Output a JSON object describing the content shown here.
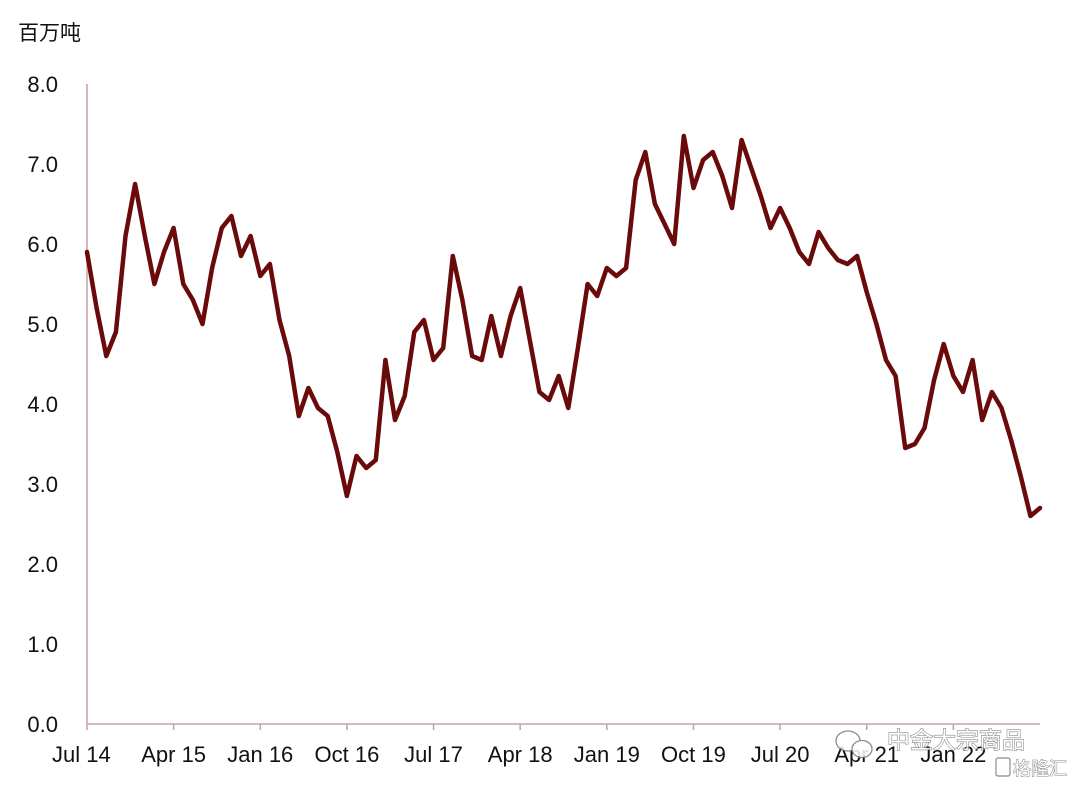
{
  "chart_data": {
    "type": "line",
    "unit_label": "百万吨",
    "ylim": [
      0,
      8
    ],
    "y_ticks": [
      "0.0",
      "1.0",
      "2.0",
      "3.0",
      "4.0",
      "5.0",
      "6.0",
      "7.0",
      "8.0"
    ],
    "x_tick_labels": [
      "Jul 14",
      "Apr 15",
      "Jan 16",
      "Oct 16",
      "Jul 17",
      "Apr 18",
      "Jan 19",
      "Oct 19",
      "Jul 20",
      "Apr 21",
      "Jan 22"
    ],
    "grid": false,
    "legend": "none",
    "line_color": "#6b0a0a",
    "axis_color": "#c9a0a0",
    "series": [
      {
        "points": [
          [
            "2014-07",
            5.9
          ],
          [
            "2014-08",
            5.2
          ],
          [
            "2014-09",
            4.6
          ],
          [
            "2014-10",
            4.9
          ],
          [
            "2014-11",
            6.1
          ],
          [
            "2014-12",
            6.75
          ],
          [
            "2015-01",
            6.1
          ],
          [
            "2015-02",
            5.5
          ],
          [
            "2015-03",
            5.9
          ],
          [
            "2015-04",
            6.2
          ],
          [
            "2015-05",
            5.5
          ],
          [
            "2015-06",
            5.3
          ],
          [
            "2015-07",
            5.0
          ],
          [
            "2015-08",
            5.7
          ],
          [
            "2015-09",
            6.2
          ],
          [
            "2015-10",
            6.35
          ],
          [
            "2015-11",
            5.85
          ],
          [
            "2015-12",
            6.1
          ],
          [
            "2016-01",
            5.6
          ],
          [
            "2016-02",
            5.75
          ],
          [
            "2016-03",
            5.05
          ],
          [
            "2016-04",
            4.6
          ],
          [
            "2016-05",
            3.85
          ],
          [
            "2016-06",
            4.2
          ],
          [
            "2016-07",
            3.95
          ],
          [
            "2016-08",
            3.85
          ],
          [
            "2016-09",
            3.4
          ],
          [
            "2016-10",
            2.85
          ],
          [
            "2016-11",
            3.35
          ],
          [
            "2016-12",
            3.2
          ],
          [
            "2017-01",
            3.3
          ],
          [
            "2017-02",
            4.55
          ],
          [
            "2017-03",
            3.8
          ],
          [
            "2017-04",
            4.1
          ],
          [
            "2017-05",
            4.9
          ],
          [
            "2017-06",
            5.05
          ],
          [
            "2017-07",
            4.55
          ],
          [
            "2017-08",
            4.7
          ],
          [
            "2017-09",
            5.85
          ],
          [
            "2017-10",
            5.3
          ],
          [
            "2017-11",
            4.6
          ],
          [
            "2017-12",
            4.55
          ],
          [
            "2018-01",
            5.1
          ],
          [
            "2018-02",
            4.6
          ],
          [
            "2018-03",
            5.1
          ],
          [
            "2018-04",
            5.45
          ],
          [
            "2018-05",
            4.8
          ],
          [
            "2018-06",
            4.15
          ],
          [
            "2018-07",
            4.05
          ],
          [
            "2018-08",
            4.35
          ],
          [
            "2018-09",
            3.95
          ],
          [
            "2018-10",
            4.7
          ],
          [
            "2018-11",
            5.5
          ],
          [
            "2018-12",
            5.35
          ],
          [
            "2019-01",
            5.7
          ],
          [
            "2019-02",
            5.6
          ],
          [
            "2019-03",
            5.7
          ],
          [
            "2019-04",
            6.8
          ],
          [
            "2019-05",
            7.15
          ],
          [
            "2019-06",
            6.5
          ],
          [
            "2019-07",
            6.25
          ],
          [
            "2019-08",
            6.0
          ],
          [
            "2019-09",
            7.35
          ],
          [
            "2019-10",
            6.7
          ],
          [
            "2019-11",
            7.05
          ],
          [
            "2019-12",
            7.15
          ],
          [
            "2020-01",
            6.85
          ],
          [
            "2020-02",
            6.45
          ],
          [
            "2020-03",
            7.3
          ],
          [
            "2020-04",
            6.95
          ],
          [
            "2020-05",
            6.6
          ],
          [
            "2020-06",
            6.2
          ],
          [
            "2020-07",
            6.45
          ],
          [
            "2020-08",
            6.2
          ],
          [
            "2020-09",
            5.9
          ],
          [
            "2020-10",
            5.75
          ],
          [
            "2020-11",
            6.15
          ],
          [
            "2020-12",
            5.95
          ],
          [
            "2021-01",
            5.8
          ],
          [
            "2021-02",
            5.75
          ],
          [
            "2021-03",
            5.85
          ],
          [
            "2021-04",
            5.4
          ],
          [
            "2021-05",
            5.0
          ],
          [
            "2021-06",
            4.55
          ],
          [
            "2021-07",
            4.35
          ],
          [
            "2021-08",
            3.45
          ],
          [
            "2021-09",
            3.5
          ],
          [
            "2021-10",
            3.7
          ],
          [
            "2021-11",
            4.3
          ],
          [
            "2021-12",
            4.75
          ],
          [
            "2022-01",
            4.35
          ],
          [
            "2022-02",
            4.15
          ],
          [
            "2022-03",
            4.55
          ],
          [
            "2022-04",
            3.8
          ],
          [
            "2022-05",
            4.15
          ],
          [
            "2022-06",
            3.95
          ],
          [
            "2022-07",
            3.55
          ],
          [
            "2022-08",
            3.1
          ],
          [
            "2022-09",
            2.6
          ],
          [
            "2022-10",
            2.7
          ]
        ]
      }
    ]
  },
  "watermark": {
    "channel_name": "中金大宗商品",
    "site_name": "格隆汇"
  }
}
